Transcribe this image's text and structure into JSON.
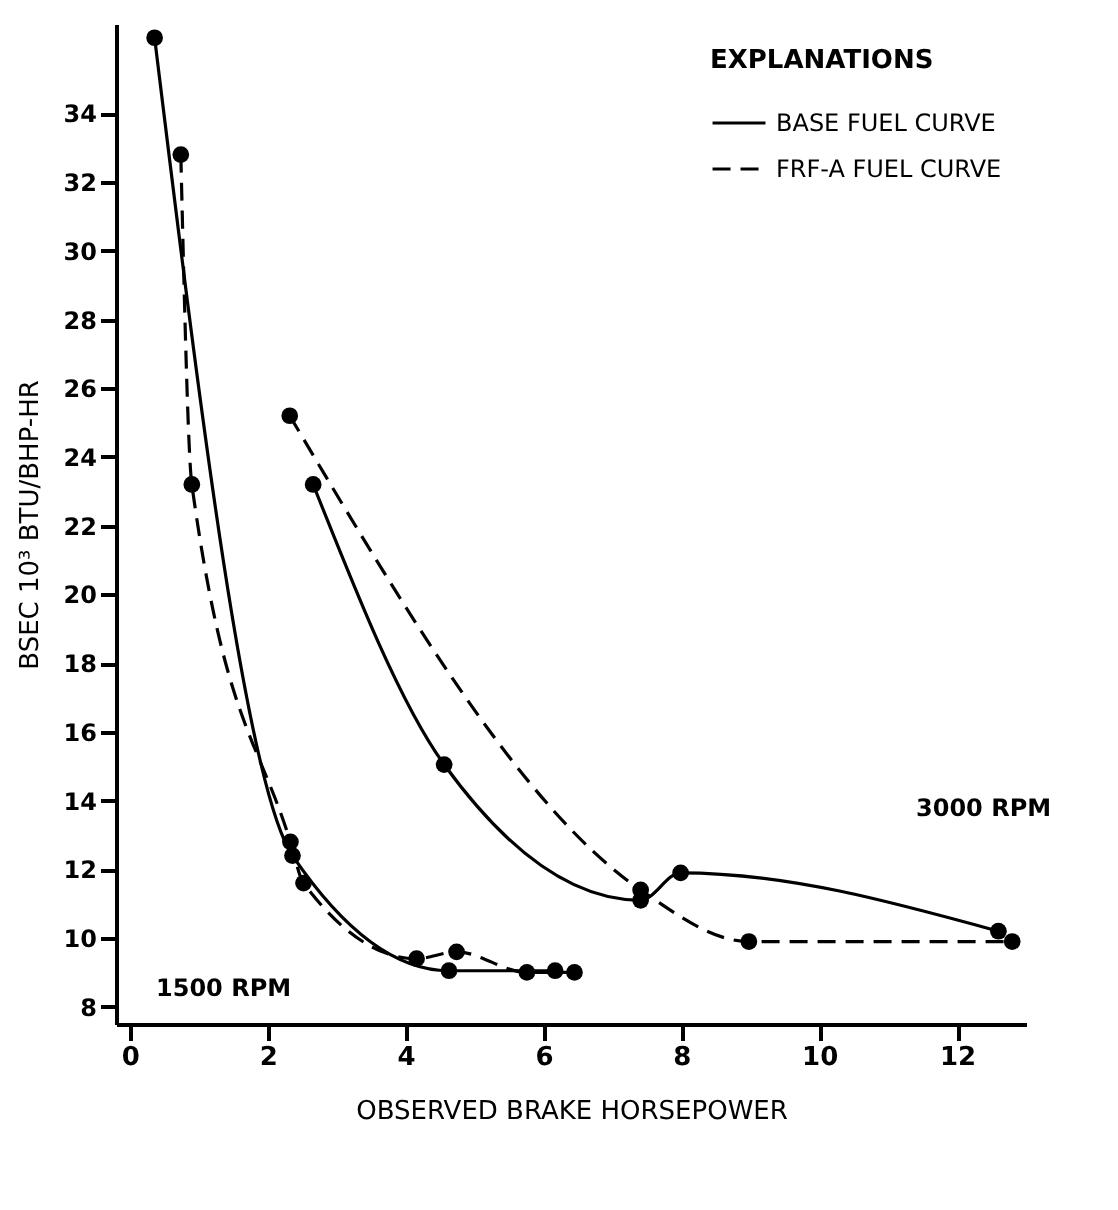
{
  "chart_data": {
    "type": "line",
    "xlabel": "OBSERVED BRAKE HORSEPOWER",
    "ylabel": "BSEC 10³ BTU/BHP-HR",
    "legend_title": "EXPLANATIONS",
    "xlim": [
      -0.2,
      13
    ],
    "xticks": [
      0,
      2,
      4,
      6,
      8,
      10,
      12
    ],
    "ylim": [
      7.5,
      36.6
    ],
    "yticks": [
      8,
      10,
      12,
      14,
      16,
      18,
      20,
      22,
      24,
      26,
      28,
      30,
      32,
      34
    ],
    "grid": false,
    "legend": "top right",
    "series": [
      {
        "name": "BASE FUEL CURVE",
        "color": "#000000",
        "marker": "circle",
        "line_style": "solid",
        "x": [
          0.36,
          2.36,
          4.63,
          6.17,
          null,
          2.66,
          4.56,
          7.41,
          7.99,
          12.6
        ],
        "values": [
          36.2,
          12.4,
          9.05,
          9.05,
          null,
          23.2,
          15.05,
          11.1,
          11.9,
          10.2
        ]
      },
      {
        "name": "FRF-A FUEL CURVE",
        "color": "#000000",
        "marker": "circle",
        "line_style": "dashed",
        "x": [
          0.74,
          0.9,
          2.33,
          2.52,
          4.16,
          4.74,
          5.76,
          6.45,
          null,
          2.32,
          7.41,
          8.98,
          12.8
        ],
        "values": [
          32.8,
          23.2,
          12.8,
          11.6,
          9.4,
          9.6,
          9.0,
          9.0,
          null,
          25.2,
          11.4,
          9.9,
          9.9
        ]
      }
    ],
    "annotations": [
      "1500 RPM",
      "3000 RPM"
    ]
  }
}
